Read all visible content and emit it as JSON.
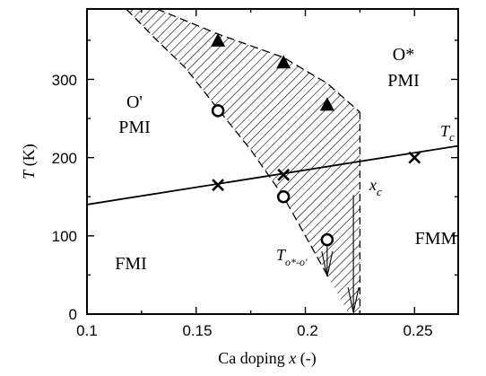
{
  "chart_data": {
    "type": "scatter",
    "xlabel_prefix": "Ca doping ",
    "xlabel_var": "x",
    "xlabel_suffix": " (-)",
    "ylabel_var": "T",
    "ylabel_suffix": " (K)",
    "xlim": [
      0.1,
      0.27
    ],
    "ylim": [
      0,
      390
    ],
    "xticks": [
      0.1,
      0.15,
      0.2,
      0.25
    ],
    "xtick_labels": [
      "0.1",
      "0.15",
      "0.2",
      "0.25"
    ],
    "yticks": [
      0,
      100,
      200,
      300
    ],
    "ytick_labels": [
      "0",
      "100",
      "200",
      "300"
    ],
    "series": [
      {
        "marker": "triangle",
        "x": [
          0.16,
          0.19,
          0.21
        ],
        "y": [
          350,
          322,
          268
        ]
      },
      {
        "marker": "circle",
        "x": [
          0.16,
          0.19,
          0.21
        ],
        "y": [
          260,
          150,
          95
        ]
      },
      {
        "marker": "cross",
        "x": [
          0.16,
          0.19,
          0.25
        ],
        "y": [
          165,
          178,
          200
        ]
      }
    ],
    "tc_line": {
      "x": [
        0.1,
        0.27
      ],
      "y": [
        140,
        215
      ]
    },
    "hatched_region": {
      "boundary_upper": [
        [
          0.132,
          390
        ],
        [
          0.16,
          358
        ],
        [
          0.19,
          328
        ],
        [
          0.21,
          295
        ],
        [
          0.225,
          258
        ]
      ],
      "boundary_lower": [
        [
          0.225,
          0
        ],
        [
          0.22,
          0
        ],
        [
          0.21,
          50
        ],
        [
          0.19,
          150
        ],
        [
          0.175,
          210
        ],
        [
          0.16,
          262
        ],
        [
          0.145,
          315
        ],
        [
          0.132,
          350
        ],
        [
          0.118,
          390
        ]
      ],
      "right_edge_x": 0.225
    },
    "regions": [
      {
        "line1": "O'",
        "line2": "PMI"
      },
      {
        "line1": "O*",
        "line2": "PMI"
      },
      {
        "line1": "FMI"
      },
      {
        "line1": "FMM"
      }
    ],
    "annotations": {
      "tc": {
        "main": "T",
        "sub": "c"
      },
      "xc": {
        "main": "x",
        "sub": "c"
      },
      "to": {
        "main": "T",
        "sub": "o*-o'"
      }
    }
  }
}
